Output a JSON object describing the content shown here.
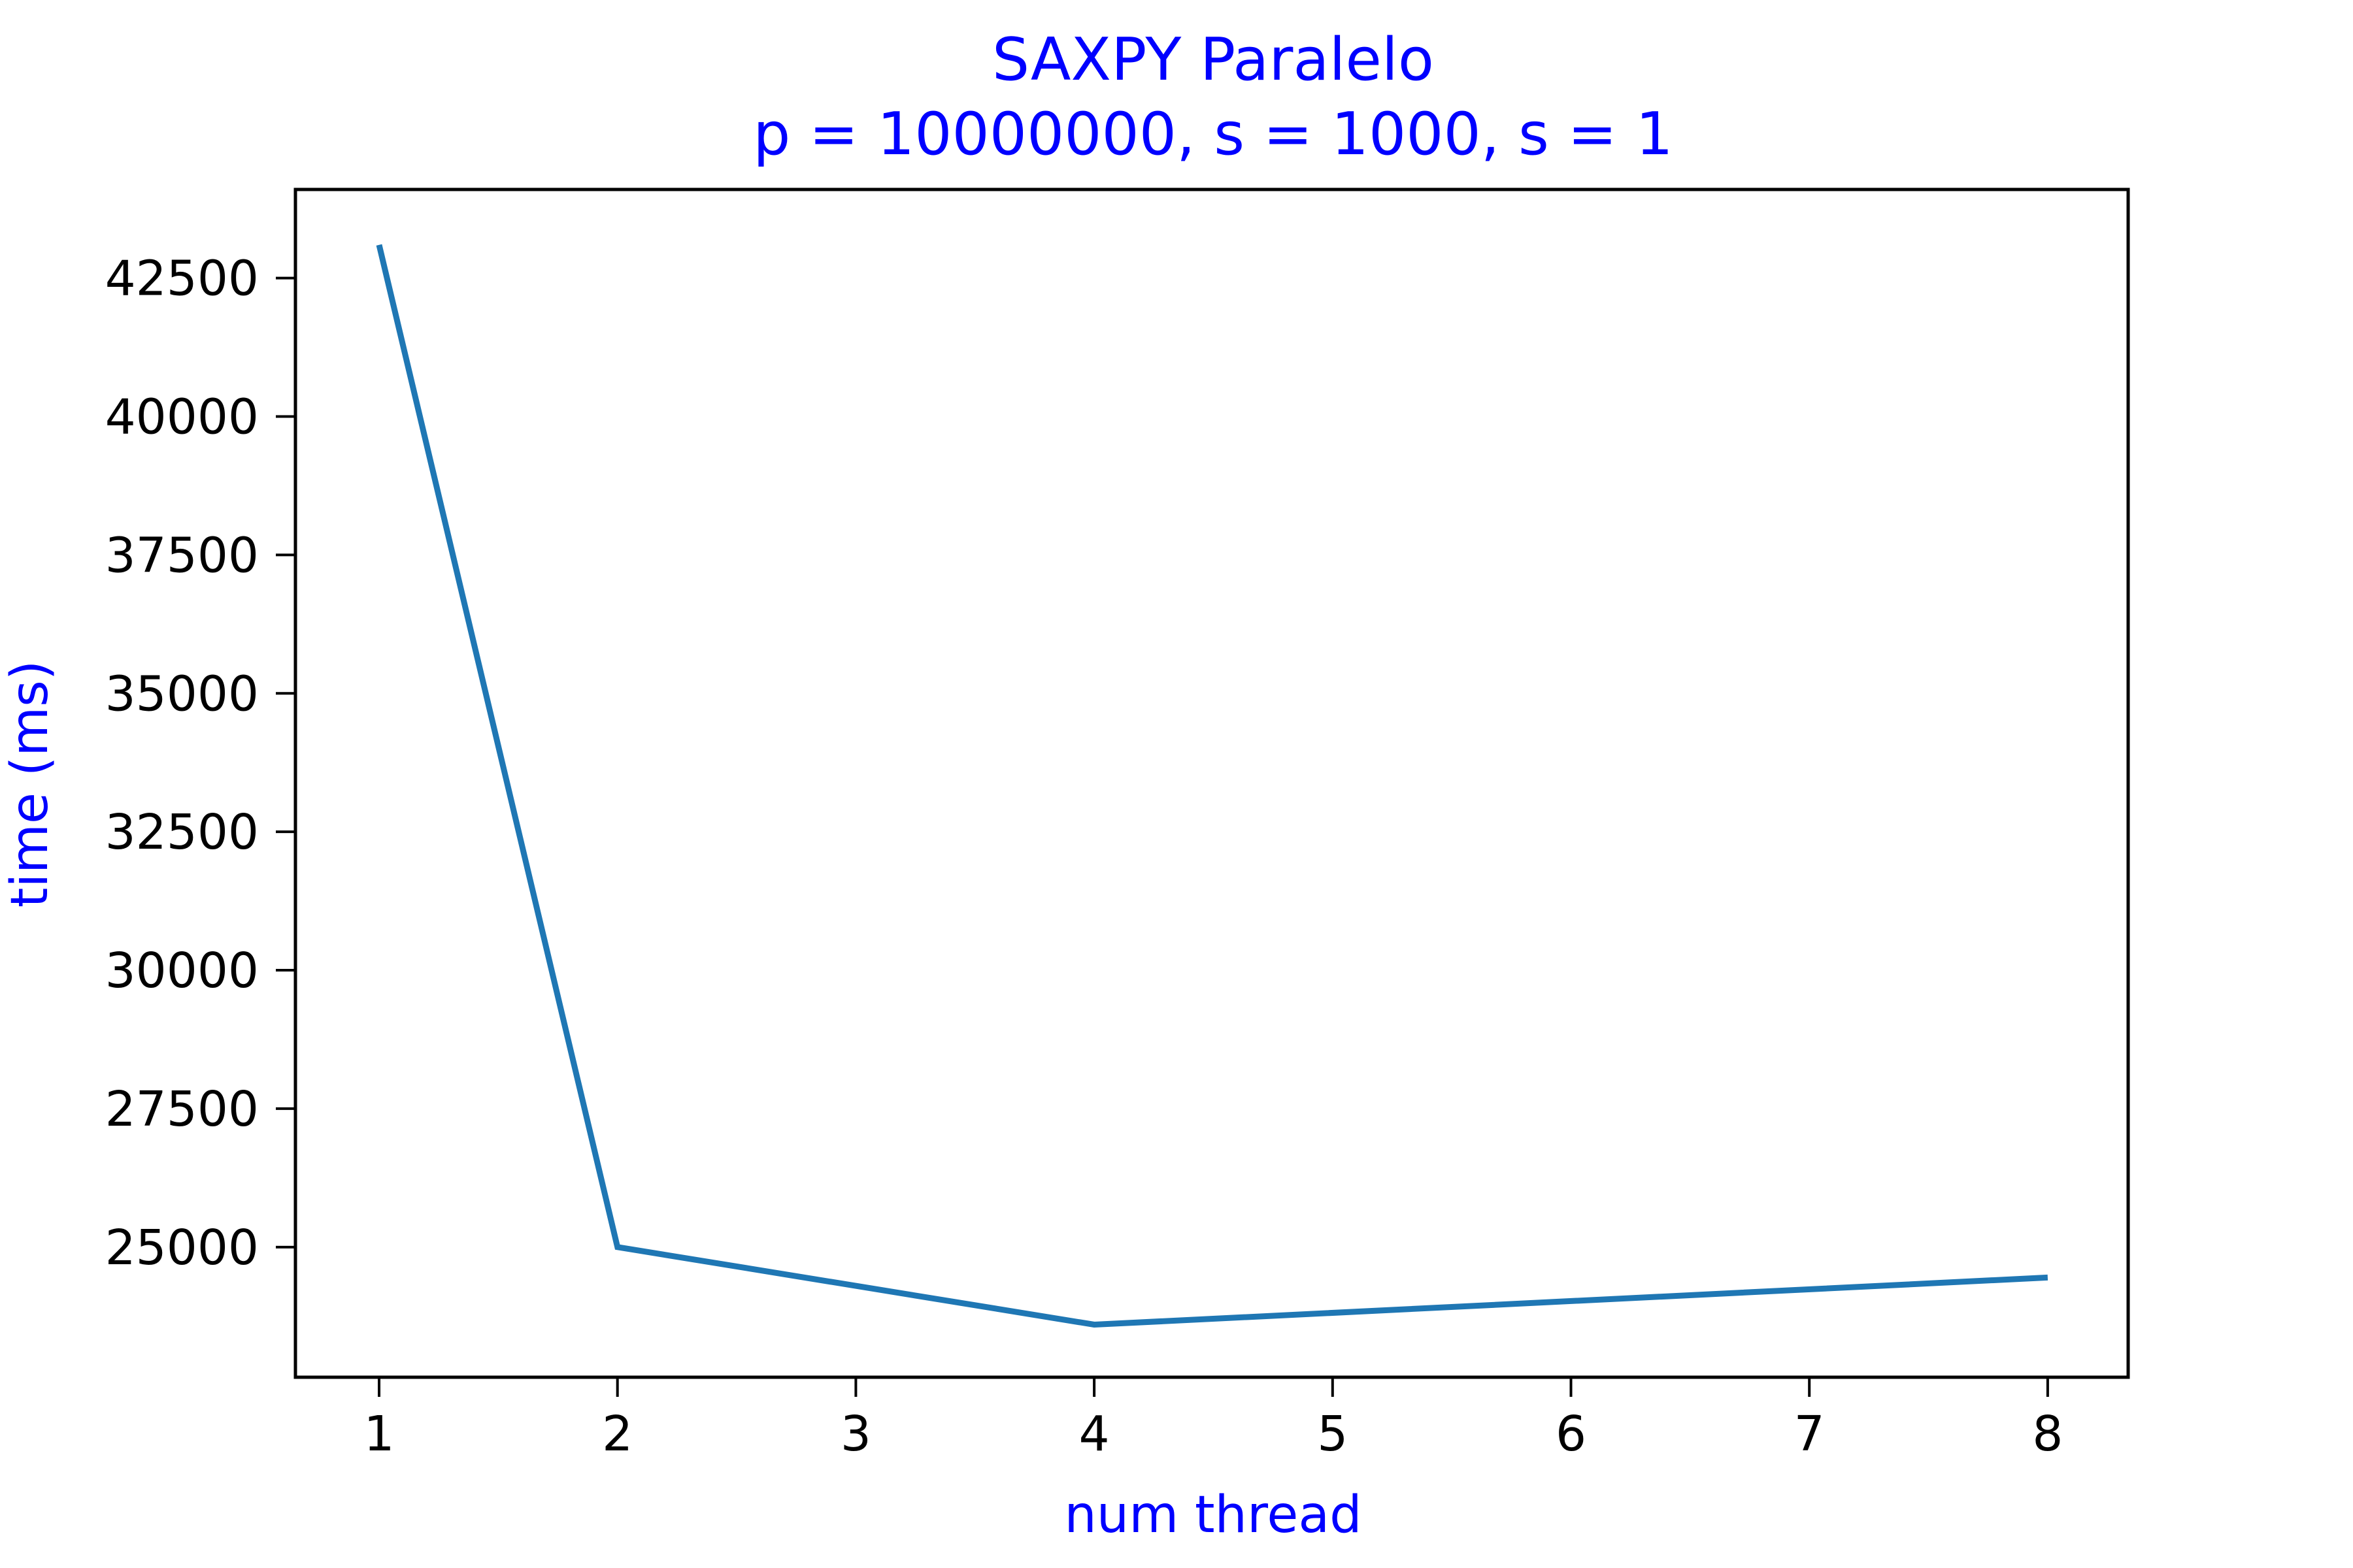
{
  "chart_data": {
    "type": "line",
    "title": "SAXPY Paralelo",
    "subtitle": "p = 10000000, s = 1000, s = 1",
    "xlabel": "num thread",
    "ylabel": "time (ms)",
    "x_ticks": [
      "1",
      "2",
      "3",
      "4",
      "5",
      "6",
      "7",
      "8"
    ],
    "y_ticks": [
      "25000",
      "27500",
      "30000",
      "32500",
      "35000",
      "37500",
      "40000",
      "42500"
    ],
    "ylim": [
      22650,
      44100
    ],
    "grid": false,
    "colors": {
      "line": "#1f77b4",
      "title": "#0000ff",
      "ticks": "#000000"
    },
    "series": [
      {
        "x": [
          "1",
          "2",
          "4",
          "8"
        ],
        "values": [
          43100,
          25000,
          23600,
          24450
        ]
      }
    ]
  }
}
